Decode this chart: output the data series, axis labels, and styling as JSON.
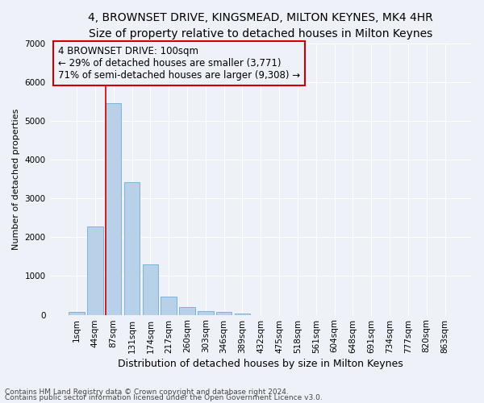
{
  "title": "4, BROWNSET DRIVE, KINGSMEAD, MILTON KEYNES, MK4 4HR",
  "subtitle": "Size of property relative to detached houses in Milton Keynes",
  "xlabel": "Distribution of detached houses by size in Milton Keynes",
  "ylabel": "Number of detached properties",
  "bar_labels": [
    "1sqm",
    "44sqm",
    "87sqm",
    "131sqm",
    "174sqm",
    "217sqm",
    "260sqm",
    "303sqm",
    "346sqm",
    "389sqm",
    "432sqm",
    "475sqm",
    "518sqm",
    "561sqm",
    "604sqm",
    "648sqm",
    "691sqm",
    "734sqm",
    "777sqm",
    "820sqm",
    "863sqm"
  ],
  "bar_values": [
    75,
    2270,
    5450,
    3420,
    1300,
    470,
    195,
    105,
    70,
    40,
    0,
    0,
    0,
    0,
    0,
    0,
    0,
    0,
    0,
    0,
    0
  ],
  "bar_color": "#b8d0e8",
  "bar_edge_color": "#6aaed6",
  "vline_x_index": 2,
  "vline_color": "#cc0000",
  "annotation_line1": "4 BROWNSET DRIVE: 100sqm",
  "annotation_line2": "← 29% of detached houses are smaller (3,771)",
  "annotation_line3": "71% of semi-detached houses are larger (9,308) →",
  "ylim": [
    0,
    7000
  ],
  "yticks": [
    0,
    1000,
    2000,
    3000,
    4000,
    5000,
    6000,
    7000
  ],
  "background_color": "#eef2f8",
  "grid_color": "#ffffff",
  "footer_line1": "Contains HM Land Registry data © Crown copyright and database right 2024.",
  "footer_line2": "Contains public sector information licensed under the Open Government Licence v3.0.",
  "title_fontsize": 10,
  "subtitle_fontsize": 9,
  "xlabel_fontsize": 9,
  "ylabel_fontsize": 8,
  "tick_fontsize": 7.5,
  "annotation_fontsize": 8.5,
  "footer_fontsize": 6.5
}
